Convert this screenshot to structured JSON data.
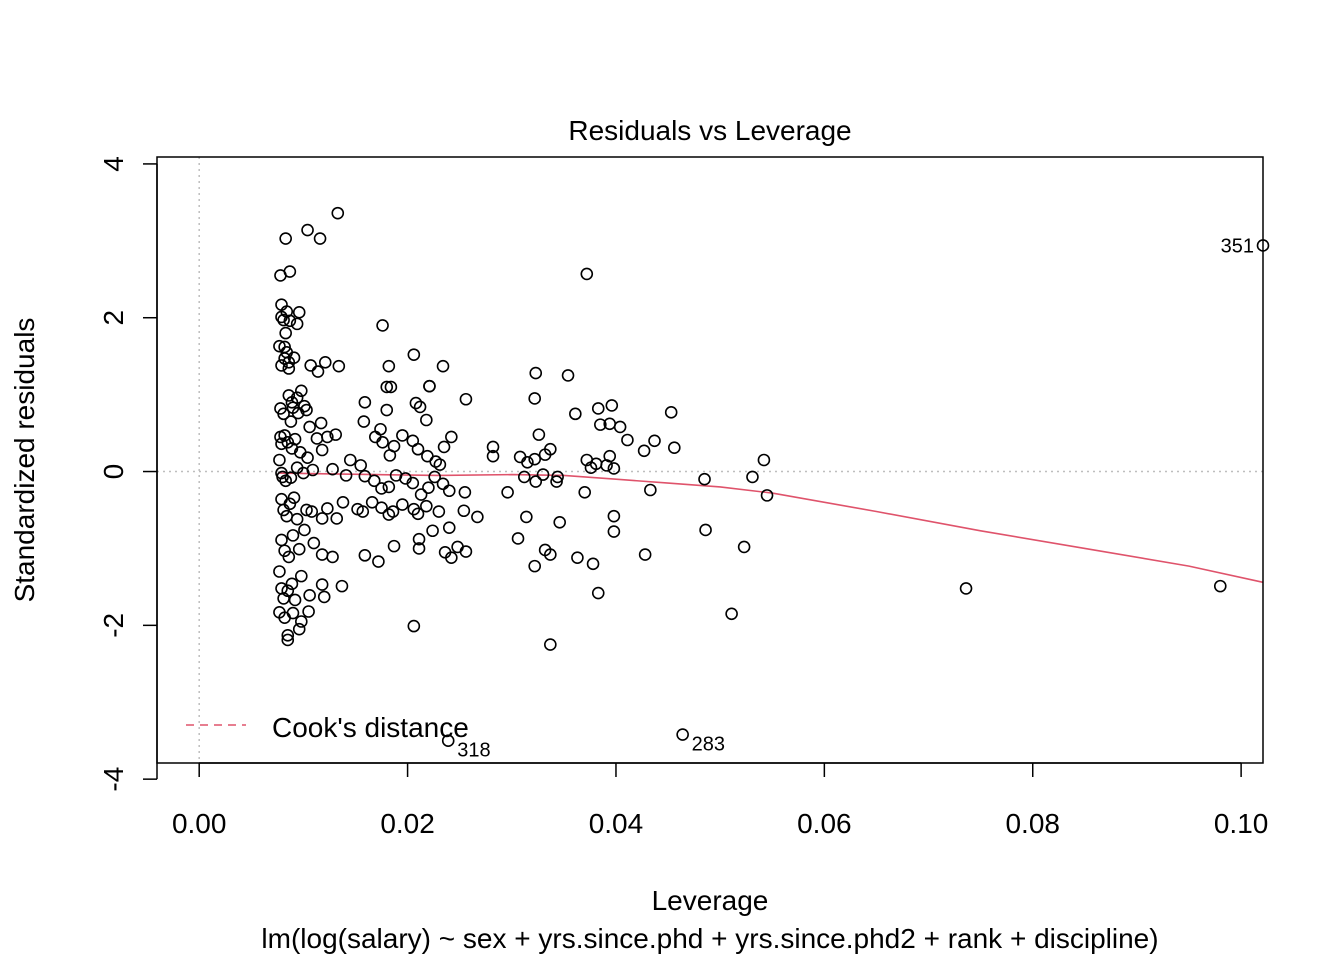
{
  "chart_data": {
    "type": "scatter",
    "title": "Residuals vs Leverage",
    "xlabel": "Leverage",
    "ylabel": "Standardized residuals",
    "subtitle": "lm(log(salary) ~ sex + yrs.since.phd + yrs.since.phd2 + rank + discipline)",
    "xlim": [
      -0.00405,
      0.1021
    ],
    "ylim": [
      -3.79,
      4.09
    ],
    "x_ticks": [
      0.0,
      0.02,
      0.04,
      0.06,
      0.08,
      0.1
    ],
    "x_tick_labels": [
      "0.00",
      "0.02",
      "0.04",
      "0.06",
      "0.08",
      "0.10"
    ],
    "y_ticks": [
      -4,
      -2,
      0,
      2,
      4
    ],
    "y_tick_labels": [
      "-4",
      "-2",
      "0",
      "2",
      "4"
    ],
    "reference_lines": {
      "h": 0,
      "v": 0
    },
    "legend": {
      "label": "Cook's distance",
      "position": "bottom-left",
      "color": "#DF536B"
    },
    "point_color": "#000000",
    "smooth_color": "#DF536B",
    "labeled_points": [
      {
        "label": "351",
        "x": 0.1021,
        "y": 2.94,
        "side": "left"
      },
      {
        "label": "318",
        "x": 0.0239,
        "y": -3.5,
        "side": "right"
      },
      {
        "label": "283",
        "x": 0.0464,
        "y": -3.42,
        "side": "right"
      }
    ],
    "points": [
      [
        0.0133,
        3.36
      ],
      [
        0.0104,
        3.14
      ],
      [
        0.0116,
        3.03
      ],
      [
        0.0083,
        3.03
      ],
      [
        0.0087,
        2.6
      ],
      [
        0.0078,
        2.55
      ],
      [
        0.0372,
        2.57
      ],
      [
        0.0079,
        2.17
      ],
      [
        0.0084,
        2.08
      ],
      [
        0.0096,
        2.07
      ],
      [
        0.0079,
        2.01
      ],
      [
        0.0087,
        1.96
      ],
      [
        0.0081,
        1.97
      ],
      [
        0.0094,
        1.92
      ],
      [
        0.0176,
        1.9
      ],
      [
        0.0083,
        1.8
      ],
      [
        0.0077,
        1.63
      ],
      [
        0.0082,
        1.62
      ],
      [
        0.0084,
        1.55
      ],
      [
        0.0091,
        1.48
      ],
      [
        0.0082,
        1.47
      ],
      [
        0.0086,
        1.42
      ],
      [
        0.0079,
        1.38
      ],
      [
        0.0086,
        1.34
      ],
      [
        0.0121,
        1.42
      ],
      [
        0.0134,
        1.37
      ],
      [
        0.0107,
        1.38
      ],
      [
        0.0114,
        1.3
      ],
      [
        0.0206,
        1.52
      ],
      [
        0.0234,
        1.37
      ],
      [
        0.0182,
        1.37
      ],
      [
        0.0323,
        1.28
      ],
      [
        0.0354,
        1.25
      ],
      [
        0.0221,
        1.11
      ],
      [
        0.0221,
        1.11
      ],
      [
        0.018,
        1.1
      ],
      [
        0.0184,
        1.1
      ],
      [
        0.0098,
        1.05
      ],
      [
        0.0086,
        0.99
      ],
      [
        0.0089,
        0.9
      ],
      [
        0.0094,
        0.96
      ],
      [
        0.0078,
        0.82
      ],
      [
        0.0081,
        0.75
      ],
      [
        0.009,
        0.83
      ],
      [
        0.0101,
        0.85
      ],
      [
        0.0103,
        0.8
      ],
      [
        0.0095,
        0.76
      ],
      [
        0.0088,
        0.65
      ],
      [
        0.0106,
        0.58
      ],
      [
        0.0117,
        0.63
      ],
      [
        0.0159,
        0.9
      ],
      [
        0.0158,
        0.65
      ],
      [
        0.018,
        0.8
      ],
      [
        0.0208,
        0.89
      ],
      [
        0.0212,
        0.84
      ],
      [
        0.0218,
        0.67
      ],
      [
        0.0256,
        0.94
      ],
      [
        0.0322,
        0.95
      ],
      [
        0.0361,
        0.75
      ],
      [
        0.0383,
        0.82
      ],
      [
        0.0396,
        0.86
      ],
      [
        0.0394,
        0.62
      ],
      [
        0.0404,
        0.58
      ],
      [
        0.0385,
        0.61
      ],
      [
        0.0453,
        0.77
      ],
      [
        0.0437,
        0.4
      ],
      [
        0.0411,
        0.41
      ],
      [
        0.0456,
        0.31
      ],
      [
        0.0427,
        0.27
      ],
      [
        0.0542,
        0.15
      ],
      [
        0.0078,
        0.45
      ],
      [
        0.0079,
        0.36
      ],
      [
        0.0077,
        0.15
      ],
      [
        0.0082,
        0.47
      ],
      [
        0.0085,
        0.38
      ],
      [
        0.0089,
        0.3
      ],
      [
        0.0092,
        0.42
      ],
      [
        0.0097,
        0.25
      ],
      [
        0.0104,
        0.18
      ],
      [
        0.0113,
        0.43
      ],
      [
        0.0118,
        0.28
      ],
      [
        0.0123,
        0.45
      ],
      [
        0.0131,
        0.48
      ],
      [
        0.0145,
        0.15
      ],
      [
        0.0155,
        0.08
      ],
      [
        0.0169,
        0.45
      ],
      [
        0.0174,
        0.55
      ],
      [
        0.0176,
        0.38
      ],
      [
        0.0183,
        0.21
      ],
      [
        0.0187,
        0.33
      ],
      [
        0.0195,
        0.47
      ],
      [
        0.0205,
        0.4
      ],
      [
        0.021,
        0.29
      ],
      [
        0.0219,
        0.2
      ],
      [
        0.0227,
        0.13
      ],
      [
        0.0235,
        0.32
      ],
      [
        0.0242,
        0.45
      ],
      [
        0.0231,
        0.09
      ],
      [
        0.0282,
        0.32
      ],
      [
        0.0282,
        0.2
      ],
      [
        0.0308,
        0.19
      ],
      [
        0.0315,
        0.12
      ],
      [
        0.0322,
        0.16
      ],
      [
        0.0326,
        0.48
      ],
      [
        0.0332,
        0.22
      ],
      [
        0.0337,
        0.29
      ],
      [
        0.0372,
        0.15
      ],
      [
        0.0376,
        0.05
      ],
      [
        0.0381,
        0.1
      ],
      [
        0.0391,
        0.08
      ],
      [
        0.0394,
        0.2
      ],
      [
        0.0398,
        0.04
      ],
      [
        0.0079,
        -0.02
      ],
      [
        0.008,
        -0.07
      ],
      [
        0.0083,
        -0.12
      ],
      [
        0.0088,
        -0.08
      ],
      [
        0.0094,
        0.05
      ],
      [
        0.01,
        -0.02
      ],
      [
        0.0109,
        0.02
      ],
      [
        0.0128,
        0.03
      ],
      [
        0.0141,
        -0.05
      ],
      [
        0.0159,
        -0.06
      ],
      [
        0.0168,
        -0.12
      ],
      [
        0.0175,
        -0.22
      ],
      [
        0.0182,
        -0.2
      ],
      [
        0.0189,
        -0.05
      ],
      [
        0.0198,
        -0.09
      ],
      [
        0.0205,
        -0.15
      ],
      [
        0.0213,
        -0.3
      ],
      [
        0.022,
        -0.21
      ],
      [
        0.0226,
        -0.07
      ],
      [
        0.0234,
        -0.16
      ],
      [
        0.024,
        -0.25
      ],
      [
        0.0255,
        -0.27
      ],
      [
        0.0296,
        -0.27
      ],
      [
        0.0312,
        -0.07
      ],
      [
        0.0323,
        -0.13
      ],
      [
        0.033,
        -0.04
      ],
      [
        0.0343,
        -0.13
      ],
      [
        0.037,
        -0.27
      ],
      [
        0.0344,
        -0.07
      ],
      [
        0.0485,
        -0.1
      ],
      [
        0.0531,
        -0.07
      ],
      [
        0.0545,
        -0.31
      ],
      [
        0.0433,
        -0.24
      ],
      [
        0.0079,
        -0.36
      ],
      [
        0.0081,
        -0.5
      ],
      [
        0.0084,
        -0.58
      ],
      [
        0.0087,
        -0.42
      ],
      [
        0.0091,
        -0.34
      ],
      [
        0.0094,
        -0.62
      ],
      [
        0.0103,
        -0.5
      ],
      [
        0.0108,
        -0.52
      ],
      [
        0.0118,
        -0.61
      ],
      [
        0.0123,
        -0.48
      ],
      [
        0.0132,
        -0.61
      ],
      [
        0.0138,
        -0.4
      ],
      [
        0.0152,
        -0.49
      ],
      [
        0.0157,
        -0.52
      ],
      [
        0.0166,
        -0.4
      ],
      [
        0.0175,
        -0.47
      ],
      [
        0.0182,
        -0.56
      ],
      [
        0.0186,
        -0.52
      ],
      [
        0.0195,
        -0.43
      ],
      [
        0.0206,
        -0.49
      ],
      [
        0.021,
        -0.55
      ],
      [
        0.0218,
        -0.45
      ],
      [
        0.0224,
        -0.77
      ],
      [
        0.023,
        -0.52
      ],
      [
        0.024,
        -0.73
      ],
      [
        0.0254,
        -0.51
      ],
      [
        0.0267,
        -0.59
      ],
      [
        0.0314,
        -0.59
      ],
      [
        0.0346,
        -0.66
      ],
      [
        0.0398,
        -0.58
      ],
      [
        0.0398,
        -0.78
      ],
      [
        0.0486,
        -0.76
      ],
      [
        0.0306,
        -0.87
      ],
      [
        0.0079,
        -0.89
      ],
      [
        0.0082,
        -1.03
      ],
      [
        0.0086,
        -1.11
      ],
      [
        0.009,
        -0.83
      ],
      [
        0.0096,
        -1.01
      ],
      [
        0.0101,
        -0.76
      ],
      [
        0.011,
        -0.93
      ],
      [
        0.0118,
        -1.08
      ],
      [
        0.0128,
        -1.11
      ],
      [
        0.0159,
        -1.09
      ],
      [
        0.0172,
        -1.17
      ],
      [
        0.0187,
        -0.97
      ],
      [
        0.0211,
        -1.0
      ],
      [
        0.0211,
        -0.88
      ],
      [
        0.0236,
        -1.05
      ],
      [
        0.0242,
        -1.12
      ],
      [
        0.0248,
        -0.98
      ],
      [
        0.0256,
        -1.04
      ],
      [
        0.0322,
        -1.23
      ],
      [
        0.0332,
        -1.02
      ],
      [
        0.0337,
        -1.08
      ],
      [
        0.0363,
        -1.12
      ],
      [
        0.0378,
        -1.2
      ],
      [
        0.0428,
        -1.08
      ],
      [
        0.0523,
        -0.98
      ],
      [
        0.0077,
        -1.3
      ],
      [
        0.0079,
        -1.52
      ],
      [
        0.0081,
        -1.65
      ],
      [
        0.0085,
        -1.55
      ],
      [
        0.0089,
        -1.46
      ],
      [
        0.0092,
        -1.67
      ],
      [
        0.0098,
        -1.36
      ],
      [
        0.0106,
        -1.61
      ],
      [
        0.0118,
        -1.47
      ],
      [
        0.012,
        -1.63
      ],
      [
        0.0137,
        -1.49
      ],
      [
        0.0077,
        -1.83
      ],
      [
        0.0082,
        -1.9
      ],
      [
        0.009,
        -1.84
      ],
      [
        0.0098,
        -1.95
      ],
      [
        0.0105,
        -1.82
      ],
      [
        0.0085,
        -2.13
      ],
      [
        0.0085,
        -2.19
      ],
      [
        0.0096,
        -2.05
      ],
      [
        0.0206,
        -2.01
      ],
      [
        0.0337,
        -2.25
      ],
      [
        0.0383,
        -1.58
      ],
      [
        0.0511,
        -1.85
      ],
      [
        0.0736,
        -1.52
      ],
      [
        0.098,
        -1.49
      ]
    ],
    "smooth": [
      [
        0.0076,
        -0.02
      ],
      [
        0.012,
        -0.03
      ],
      [
        0.017,
        -0.04
      ],
      [
        0.023,
        -0.05
      ],
      [
        0.03,
        -0.04
      ],
      [
        0.035,
        -0.05
      ],
      [
        0.04,
        -0.1
      ],
      [
        0.045,
        -0.15
      ],
      [
        0.05,
        -0.2
      ],
      [
        0.055,
        -0.28
      ],
      [
        0.065,
        -0.52
      ],
      [
        0.075,
        -0.77
      ],
      [
        0.085,
        -1.0
      ],
      [
        0.095,
        -1.23
      ],
      [
        0.1021,
        -1.44
      ]
    ]
  }
}
